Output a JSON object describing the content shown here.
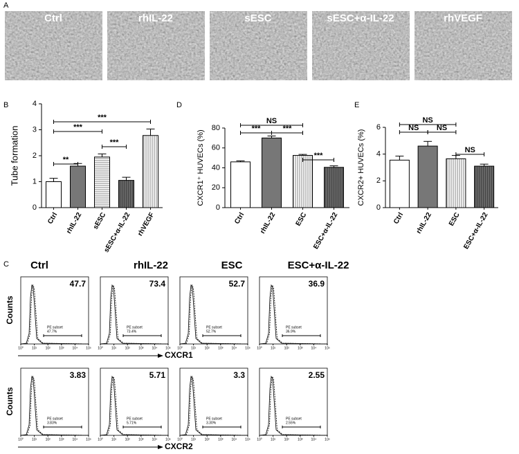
{
  "panel_labels": [
    "A",
    "B",
    "C",
    "D",
    "E"
  ],
  "image_panel": {
    "labels": [
      "Ctrl",
      "rhIL-22",
      "sESC",
      "sESC+α-IL-22",
      "rhVEGF"
    ]
  },
  "chart_data": [
    {
      "type": "bar",
      "ylabel": "Tube formation",
      "categories": [
        "Ctrl",
        "rhIL-22",
        "sESC",
        "sESC+α-IL-22",
        "rhVEGF"
      ],
      "values": [
        1.0,
        1.6,
        1.95,
        1.05,
        2.78
      ],
      "errors": [
        0.13,
        0.1,
        0.12,
        0.12,
        0.25
      ],
      "ylim": [
        0,
        4
      ],
      "yticks": [
        0,
        1,
        2,
        3,
        4
      ],
      "annotations": [
        {
          "between": [
            "Ctrl",
            "rhIL-22"
          ],
          "label": "**"
        },
        {
          "between": [
            "sESC",
            "sESC+α-IL-22"
          ],
          "label": "***"
        },
        {
          "between": [
            "Ctrl",
            "sESC"
          ],
          "label": "***"
        },
        {
          "between": [
            "Ctrl",
            "rhVEGF"
          ],
          "label": "***"
        }
      ]
    },
    {
      "type": "bar",
      "ylabel": "CXCR1⁺ HUVECs (%)",
      "categories": [
        "Ctrl",
        "rhIL-22",
        "ESC",
        "ESC+α-IL-22"
      ],
      "values": [
        46,
        70,
        52.5,
        40.5
      ],
      "errors": [
        1,
        2,
        1,
        1.5
      ],
      "ylim": [
        0,
        80
      ],
      "yticks": [
        0,
        20,
        40,
        60,
        80
      ],
      "annotations": [
        {
          "between": [
            "Ctrl",
            "ESC"
          ],
          "label": "NS"
        },
        {
          "between": [
            "Ctrl",
            "rhIL-22"
          ],
          "label": "***"
        },
        {
          "between": [
            "rhIL-22",
            "ESC"
          ],
          "label": "***"
        },
        {
          "between": [
            "ESC",
            "ESC+α-IL-22"
          ],
          "label": "***"
        }
      ]
    },
    {
      "type": "bar",
      "ylabel": "CXCR2+ HUVECs (%)",
      "categories": [
        "Ctrl",
        "rhIL-22",
        "ESC",
        "ESC+α-IL-22"
      ],
      "values": [
        3.55,
        4.6,
        3.65,
        3.1
      ],
      "errors": [
        0.3,
        0.35,
        0.25,
        0.15
      ],
      "ylim": [
        0,
        6
      ],
      "yticks": [
        0,
        2,
        4,
        6
      ],
      "annotations": [
        {
          "between": [
            "Ctrl",
            "ESC"
          ],
          "label": "NS"
        },
        {
          "between": [
            "Ctrl",
            "rhIL-22"
          ],
          "label": "NS"
        },
        {
          "between": [
            "rhIL-22",
            "ESC"
          ],
          "label": "NS"
        },
        {
          "between": [
            "ESC",
            "ESC+α-IL-22"
          ],
          "label": "NS"
        }
      ]
    }
  ],
  "flow_panel": {
    "columns": [
      "Ctrl",
      "rhIL-22",
      "ESC",
      "ESC+α-IL-22"
    ],
    "y_label": "Counts",
    "gate_label": "PE subset",
    "axis_ticks": [
      "10⁰",
      "10¹",
      "10²",
      "10³",
      "10⁴",
      "10⁵"
    ],
    "rows": [
      {
        "x_label": "CXCR1",
        "values": [
          47.7,
          73.4,
          52.7,
          36.9
        ],
        "gate_texts": [
          "47.7%",
          "73.4%",
          "52.7%",
          "36.9%"
        ]
      },
      {
        "x_label": "CXCR2",
        "values": [
          3.83,
          5.71,
          3.3,
          2.55
        ],
        "gate_texts": [
          "3.83%",
          "5.71%",
          "3.30%",
          "2.55%"
        ]
      }
    ]
  }
}
